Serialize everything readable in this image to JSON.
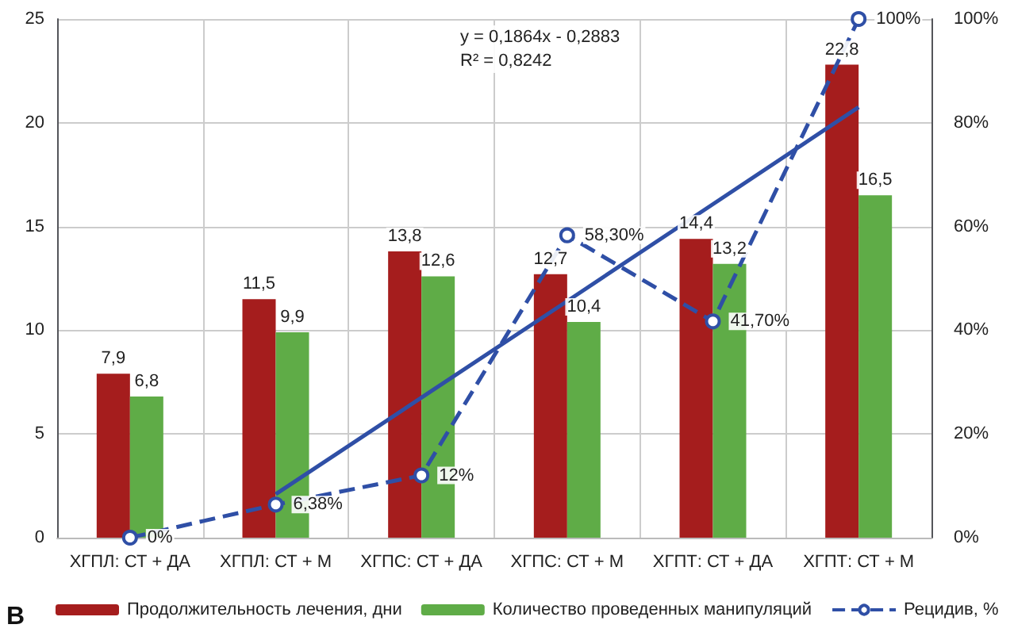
{
  "chart_data": {
    "type": "bar",
    "categories": [
      "ХГПЛ: СТ + ДА",
      "ХГПЛ: СТ + М",
      "ХГПС: СТ + ДА",
      "ХГПС: СТ + М",
      "ХГПТ: СТ + ДА",
      "ХГПТ: СТ + М"
    ],
    "series": [
      {
        "name": "Продолжительность лечения, дни",
        "color": "#a51d1d",
        "values": [
          7.9,
          11.5,
          13.8,
          12.7,
          14.4,
          22.8
        ],
        "value_labels": [
          "7,9",
          "11,5",
          "13,8",
          "12,7",
          "14,4",
          "22,8"
        ]
      },
      {
        "name": "Количество проведенных манипуляций",
        "color": "#5fac47",
        "values": [
          6.8,
          9.9,
          12.6,
          10.4,
          13.2,
          16.5
        ],
        "value_labels": [
          "6,8",
          "9,9",
          "12,6",
          "10,4",
          "13,2",
          "16,5"
        ]
      },
      {
        "name": "Рецидив, %",
        "type": "line",
        "axis": "y2",
        "color": "#2f4fa6",
        "line_style": "dashed",
        "marker": "circle",
        "values": [
          0,
          6.38,
          12,
          58.3,
          41.7,
          100
        ],
        "value_labels": [
          "0%",
          "6,38%",
          "12%",
          "58,30%",
          "41,70%",
          "100%"
        ]
      },
      {
        "type": "line",
        "axis": "y2",
        "color": "#2f4fa6",
        "line_style": "solid",
        "marker": "none",
        "values": [
          null,
          8.4,
          27.0,
          45.6,
          64.3,
          83.0
        ]
      }
    ],
    "ylim": [
      0,
      25
    ],
    "yticks": [
      0,
      5,
      10,
      15,
      20,
      25
    ],
    "y2lim": [
      0,
      100
    ],
    "y2ticks": [
      {
        "value": 0,
        "label": "0%"
      },
      {
        "value": 20,
        "label": "20%"
      },
      {
        "value": 40,
        "label": "40%"
      },
      {
        "value": 60,
        "label": "60%"
      },
      {
        "value": 80,
        "label": "80%"
      },
      {
        "value": 100,
        "label": "100%"
      }
    ],
    "grid": true,
    "legend": "bottom",
    "annotations": [
      "y = 0,1864x - 0,2883\nR² = 0,8242",
      "В"
    ]
  }
}
